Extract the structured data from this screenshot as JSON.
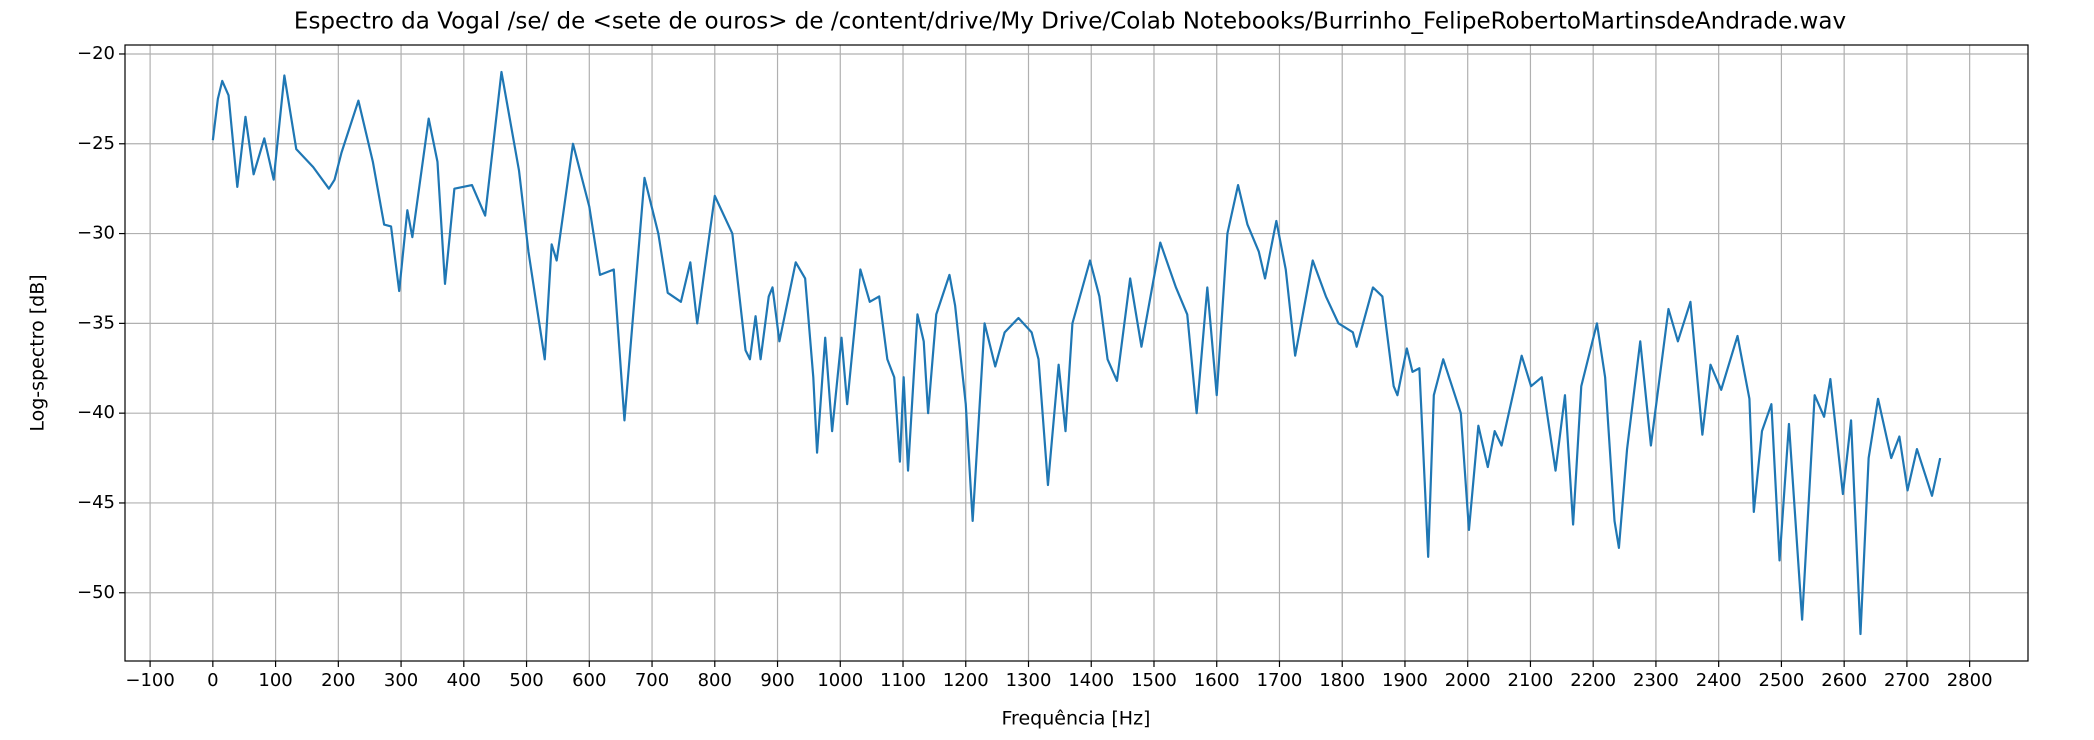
{
  "chart_data": {
    "type": "line",
    "title": "Espectro da Vogal /se/ de <sete de ouros> de /content/drive/My Drive/Colab Notebooks/Burrinho_FelipeRobertoMartinsdeAndrade.wav",
    "x_label": "Frequência [Hz]",
    "y_label": "Log-spectro [dB]",
    "color": "#1f77b4",
    "grid": true,
    "x": [
      0,
      8,
      15,
      25,
      39,
      52,
      65,
      82,
      97,
      114,
      133,
      160,
      185,
      194,
      205,
      232,
      255,
      273,
      284,
      297,
      310,
      318,
      344,
      358,
      370,
      385,
      413,
      434,
      460,
      488,
      503,
      529,
      540,
      548,
      574,
      600,
      617,
      639,
      656,
      688,
      710,
      725,
      746,
      761,
      772,
      800,
      828,
      849,
      856,
      865,
      873,
      886,
      892,
      903,
      929,
      944,
      957,
      963,
      976,
      987,
      1002,
      1011,
      1032,
      1047,
      1062,
      1075,
      1086,
      1095,
      1101,
      1108,
      1123,
      1133,
      1140,
      1153,
      1174,
      1183,
      1200,
      1211,
      1230,
      1247,
      1262,
      1284,
      1305,
      1316,
      1331,
      1348,
      1359,
      1370,
      1398,
      1413,
      1426,
      1441,
      1462,
      1480,
      1510,
      1535,
      1553,
      1568,
      1585,
      1600,
      1617,
      1634,
      1649,
      1667,
      1677,
      1695,
      1710,
      1725,
      1753,
      1774,
      1794,
      1817,
      1823,
      1849,
      1864,
      1882,
      1888,
      1903,
      1912,
      1923,
      1937,
      1946,
      1961,
      1989,
      2002,
      2017,
      2032,
      2043,
      2054,
      2086,
      2101,
      2118,
      2140,
      2155,
      2168,
      2181,
      2206,
      2219,
      2234,
      2241,
      2254,
      2275,
      2292,
      2320,
      2335,
      2355,
      2374,
      2387,
      2404,
      2430,
      2449,
      2456,
      2469,
      2484,
      2497,
      2512,
      2533,
      2553,
      2568,
      2578,
      2598,
      2611,
      2626,
      2639,
      2654,
      2675,
      2688,
      2701,
      2716,
      2740,
      2753
    ],
    "values": [
      -24.8,
      -22.5,
      -21.5,
      -22.3,
      -27.4,
      -23.5,
      -26.7,
      -24.7,
      -27,
      -21.2,
      -25.3,
      -26.3,
      -27.5,
      -27,
      -25.5,
      -22.6,
      -26,
      -29.5,
      -29.6,
      -33.2,
      -28.7,
      -30.2,
      -23.6,
      -26,
      -32.8,
      -27.5,
      -27.3,
      -29,
      -21,
      -26.5,
      -31,
      -37,
      -30.6,
      -31.5,
      -25,
      -28.5,
      -32.3,
      -32,
      -40.4,
      -26.9,
      -30,
      -33.3,
      -33.8,
      -31.6,
      -35,
      -27.9,
      -30,
      -36.5,
      -37,
      -34.6,
      -37,
      -33.5,
      -33,
      -36,
      -31.6,
      -32.5,
      -38,
      -42.2,
      -35.8,
      -41,
      -35.8,
      -39.5,
      -32,
      -33.8,
      -33.5,
      -37,
      -38,
      -42.7,
      -38,
      -43.2,
      -34.5,
      -36,
      -40,
      -34.5,
      -32.3,
      -34,
      -39.5,
      -46,
      -35,
      -37.4,
      -35.5,
      -34.7,
      -35.5,
      -37,
      -44,
      -37.3,
      -41,
      -35,
      -31.5,
      -33.5,
      -37,
      -38.2,
      -32.5,
      -36.3,
      -30.5,
      -33,
      -34.5,
      -40,
      -33,
      -39,
      -30,
      -27.3,
      -29.5,
      -31,
      -32.5,
      -29.3,
      -32,
      -36.8,
      -31.5,
      -33.5,
      -35,
      -35.5,
      -36.3,
      -33,
      -33.5,
      -38.5,
      -39,
      -36.4,
      -37.7,
      -37.5,
      -48,
      -39,
      -37,
      -40,
      -46.5,
      -40.7,
      -43,
      -41,
      -41.8,
      -36.8,
      -38.5,
      -38,
      -43.2,
      -39,
      -46.2,
      -38.5,
      -35,
      -38,
      -46,
      -47.5,
      -42,
      -36,
      -41.8,
      -34.2,
      -36,
      -33.8,
      -41.2,
      -37.3,
      -38.7,
      -35.7,
      -39.2,
      -45.5,
      -41,
      -39.5,
      -48.2,
      -40.6,
      -51.5,
      -39,
      -40.2,
      -38.1,
      -44.5,
      -40.4,
      -52.3,
      -42.5,
      -39.2,
      -42.5,
      -41.3,
      -44.3,
      -42,
      -44.6,
      -42.5
    ],
    "xlim": [
      -140,
      2893
    ],
    "ylim": [
      -53.8,
      -19.5
    ],
    "xticks": [
      {
        "value": -100,
        "label": "−100"
      },
      0,
      100,
      200,
      300,
      400,
      500,
      600,
      700,
      800,
      900,
      1000,
      1100,
      1200,
      1300,
      1400,
      1500,
      1600,
      1700,
      1800,
      1900,
      2000,
      2100,
      2200,
      2300,
      2400,
      2500,
      2600,
      2700,
      2800
    ],
    "yticks": [
      {
        "value": -20,
        "label": "−20"
      },
      {
        "value": -25,
        "label": "−25"
      },
      {
        "value": -30,
        "label": "−30"
      },
      {
        "value": -35,
        "label": "−35"
      },
      {
        "value": -40,
        "label": "−40"
      },
      {
        "value": -45,
        "label": "−45"
      },
      {
        "value": -50,
        "label": "−50"
      }
    ]
  }
}
